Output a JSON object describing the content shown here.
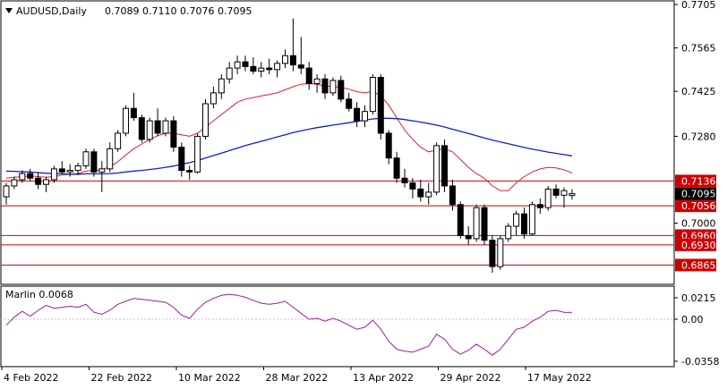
{
  "header": {
    "symbol": "AUDUSD,Daily",
    "ohlc": "0.7089 0.7110 0.7076 0.7095",
    "collapse_icon": "triangle-down-icon"
  },
  "oscillator": {
    "label": "Marlin 0.0068",
    "axis_labels": [
      "0.0215",
      "0.00",
      "-0.0358"
    ],
    "color": "#9b1f9b"
  },
  "colors": {
    "bull_candle": "#ffffff",
    "bear_candle": "#000000",
    "ma_fast": "#e0202a",
    "ma_slow": "#1020d0",
    "levels": "#d00000",
    "current_price_bg": "#000000"
  },
  "chart_data": {
    "type": "candlestick",
    "x_labels": [
      "4 Feb 2022",
      "22 Feb 2022",
      "10 Mar 2022",
      "28 Mar 2022",
      "13 Apr 2022",
      "29 Apr 2022",
      "17 May 2022"
    ],
    "y_labels": [
      "0.7705",
      "0.7565",
      "0.7425",
      "0.7280",
      "0.7000"
    ],
    "ylim": [
      0.682,
      0.7705
    ],
    "current_price": "0.7095",
    "levels": [
      {
        "label": "0.7136",
        "value": 0.7136
      },
      {
        "label": "0.7056",
        "value": 0.7056
      },
      {
        "label": "0.6960",
        "value": 0.696
      },
      {
        "label": "0.6930",
        "value": 0.693
      },
      {
        "label": "0.6865",
        "value": 0.6865
      }
    ],
    "candles": [
      [
        0.7085,
        0.713,
        0.706,
        0.712
      ],
      [
        0.712,
        0.715,
        0.711,
        0.714
      ],
      [
        0.714,
        0.717,
        0.713,
        0.716
      ],
      [
        0.716,
        0.7175,
        0.7135,
        0.7145
      ],
      [
        0.7145,
        0.7165,
        0.711,
        0.7125
      ],
      [
        0.7125,
        0.715,
        0.71,
        0.714
      ],
      [
        0.714,
        0.7185,
        0.713,
        0.7175
      ],
      [
        0.7175,
        0.72,
        0.716,
        0.7165
      ],
      [
        0.7165,
        0.719,
        0.715,
        0.717
      ],
      [
        0.717,
        0.7195,
        0.7155,
        0.7185
      ],
      [
        0.7185,
        0.724,
        0.7175,
        0.723
      ],
      [
        0.723,
        0.724,
        0.715,
        0.7165
      ],
      [
        0.7165,
        0.72,
        0.71,
        0.7175
      ],
      [
        0.7175,
        0.726,
        0.7165,
        0.724
      ],
      [
        0.724,
        0.73,
        0.723,
        0.729
      ],
      [
        0.729,
        0.738,
        0.728,
        0.737
      ],
      [
        0.737,
        0.742,
        0.733,
        0.734
      ],
      [
        0.734,
        0.735,
        0.726,
        0.727
      ],
      [
        0.727,
        0.734,
        0.726,
        0.733
      ],
      [
        0.733,
        0.737,
        0.728,
        0.729
      ],
      [
        0.729,
        0.734,
        0.728,
        0.733
      ],
      [
        0.733,
        0.7345,
        0.723,
        0.7245
      ],
      [
        0.7245,
        0.726,
        0.715,
        0.717
      ],
      [
        0.717,
        0.7185,
        0.714,
        0.7165
      ],
      [
        0.7165,
        0.729,
        0.716,
        0.728
      ],
      [
        0.728,
        0.74,
        0.727,
        0.7385
      ],
      [
        0.7385,
        0.744,
        0.737,
        0.742
      ],
      [
        0.742,
        0.748,
        0.74,
        0.7465
      ],
      [
        0.7465,
        0.752,
        0.745,
        0.75
      ],
      [
        0.75,
        0.754,
        0.748,
        0.752
      ],
      [
        0.752,
        0.754,
        0.749,
        0.7505
      ],
      [
        0.7505,
        0.7535,
        0.748,
        0.749
      ],
      [
        0.749,
        0.752,
        0.747,
        0.75
      ],
      [
        0.75,
        0.753,
        0.748,
        0.7495
      ],
      [
        0.7495,
        0.7525,
        0.747,
        0.7515
      ],
      [
        0.7515,
        0.756,
        0.75,
        0.754
      ],
      [
        0.754,
        0.766,
        0.749,
        0.751
      ],
      [
        0.751,
        0.76,
        0.748,
        0.75
      ],
      [
        0.75,
        0.752,
        0.743,
        0.745
      ],
      [
        0.745,
        0.748,
        0.742,
        0.7465
      ],
      [
        0.7465,
        0.748,
        0.74,
        0.742
      ],
      [
        0.742,
        0.747,
        0.741,
        0.746
      ],
      [
        0.746,
        0.7475,
        0.739,
        0.74
      ],
      [
        0.74,
        0.742,
        0.736,
        0.737
      ],
      [
        0.737,
        0.739,
        0.731,
        0.733
      ],
      [
        0.733,
        0.738,
        0.731,
        0.736
      ],
      [
        0.736,
        0.748,
        0.735,
        0.747
      ],
      [
        0.747,
        0.748,
        0.727,
        0.729
      ],
      [
        0.729,
        0.73,
        0.719,
        0.721
      ],
      [
        0.721,
        0.723,
        0.713,
        0.7145
      ],
      [
        0.7145,
        0.7175,
        0.7115,
        0.713
      ],
      [
        0.713,
        0.7145,
        0.708,
        0.711
      ],
      [
        0.711,
        0.714,
        0.707,
        0.7085
      ],
      [
        0.7085,
        0.713,
        0.706,
        0.71
      ],
      [
        0.71,
        0.726,
        0.709,
        0.725
      ],
      [
        0.725,
        0.727,
        0.71,
        0.712
      ],
      [
        0.712,
        0.714,
        0.704,
        0.706
      ],
      [
        0.706,
        0.707,
        0.695,
        0.696
      ],
      [
        0.696,
        0.699,
        0.693,
        0.695
      ],
      [
        0.695,
        0.706,
        0.694,
        0.705
      ],
      [
        0.705,
        0.706,
        0.693,
        0.6945
      ],
      [
        0.6945,
        0.696,
        0.684,
        0.686
      ],
      [
        0.686,
        0.696,
        0.685,
        0.695
      ],
      [
        0.695,
        0.7,
        0.694,
        0.699
      ],
      [
        0.699,
        0.704,
        0.696,
        0.703
      ],
      [
        0.703,
        0.705,
        0.695,
        0.6965
      ],
      [
        0.6965,
        0.707,
        0.696,
        0.706
      ],
      [
        0.706,
        0.708,
        0.703,
        0.705
      ],
      [
        0.705,
        0.712,
        0.704,
        0.711
      ],
      [
        0.711,
        0.7125,
        0.708,
        0.709
      ],
      [
        0.709,
        0.7115,
        0.705,
        0.7105
      ],
      [
        0.7089,
        0.711,
        0.7076,
        0.7095
      ]
    ],
    "ma_fast": [
      0.7145,
      0.7148,
      0.715,
      0.7152,
      0.715,
      0.7148,
      0.715,
      0.7155,
      0.7158,
      0.716,
      0.7168,
      0.717,
      0.7172,
      0.7182,
      0.7198,
      0.722,
      0.724,
      0.7255,
      0.727,
      0.7282,
      0.729,
      0.729,
      0.7285,
      0.728,
      0.729,
      0.731,
      0.733,
      0.735,
      0.737,
      0.739,
      0.74,
      0.7405,
      0.741,
      0.7415,
      0.742,
      0.743,
      0.744,
      0.7448,
      0.745,
      0.7448,
      0.7442,
      0.744,
      0.7438,
      0.7432,
      0.7424,
      0.742,
      0.7425,
      0.741,
      0.738,
      0.734,
      0.73,
      0.727,
      0.7245,
      0.723,
      0.7235,
      0.724,
      0.723,
      0.7205,
      0.718,
      0.716,
      0.7145,
      0.712,
      0.7105,
      0.7105,
      0.713,
      0.715,
      0.7165,
      0.7175,
      0.718,
      0.7178,
      0.7172,
      0.7162
    ],
    "ma_slow": [
      0.7168,
      0.7167,
      0.7166,
      0.7165,
      0.7163,
      0.7161,
      0.716,
      0.7159,
      0.7158,
      0.7158,
      0.7159,
      0.7159,
      0.7159,
      0.716,
      0.7162,
      0.7165,
      0.7168,
      0.717,
      0.7173,
      0.7176,
      0.718,
      0.7184,
      0.719,
      0.7195,
      0.7202,
      0.721,
      0.7218,
      0.7226,
      0.7234,
      0.7242,
      0.725,
      0.7257,
      0.7264,
      0.7271,
      0.7278,
      0.7285,
      0.7292,
      0.7298,
      0.7303,
      0.7308,
      0.7312,
      0.7316,
      0.732,
      0.7324,
      0.7328,
      0.7332,
      0.7336,
      0.7338,
      0.7338,
      0.7337,
      0.7334,
      0.733,
      0.7326,
      0.7321,
      0.7316,
      0.731,
      0.7303,
      0.7296,
      0.7289,
      0.7282,
      0.7275,
      0.7268,
      0.7262,
      0.7256,
      0.725,
      0.7244,
      0.7239,
      0.7234,
      0.7229,
      0.7225,
      0.7221,
      0.7217
    ],
    "marlin": [
      -0.006,
      0.002,
      0.008,
      0.003,
      0.009,
      0.014,
      0.011,
      0.012,
      0.013,
      0.012,
      0.015,
      0.007,
      0.005,
      0.009,
      0.015,
      0.018,
      0.021,
      0.02,
      0.019,
      0.018,
      0.017,
      0.012,
      0.004,
      0.001,
      0.01,
      0.017,
      0.021,
      0.024,
      0.025,
      0.024,
      0.022,
      0.019,
      0.016,
      0.015,
      0.016,
      0.018,
      0.012,
      0.006,
      0.0,
      0.001,
      -0.002,
      0.001,
      -0.002,
      -0.006,
      -0.01,
      -0.008,
      -0.001,
      -0.01,
      -0.022,
      -0.03,
      -0.032,
      -0.033,
      -0.03,
      -0.027,
      -0.015,
      -0.02,
      -0.03,
      -0.035,
      -0.031,
      -0.025,
      -0.03,
      -0.036,
      -0.03,
      -0.02,
      -0.01,
      -0.008,
      -0.002,
      0.002,
      0.008,
      0.009,
      0.007,
      0.0068
    ]
  }
}
